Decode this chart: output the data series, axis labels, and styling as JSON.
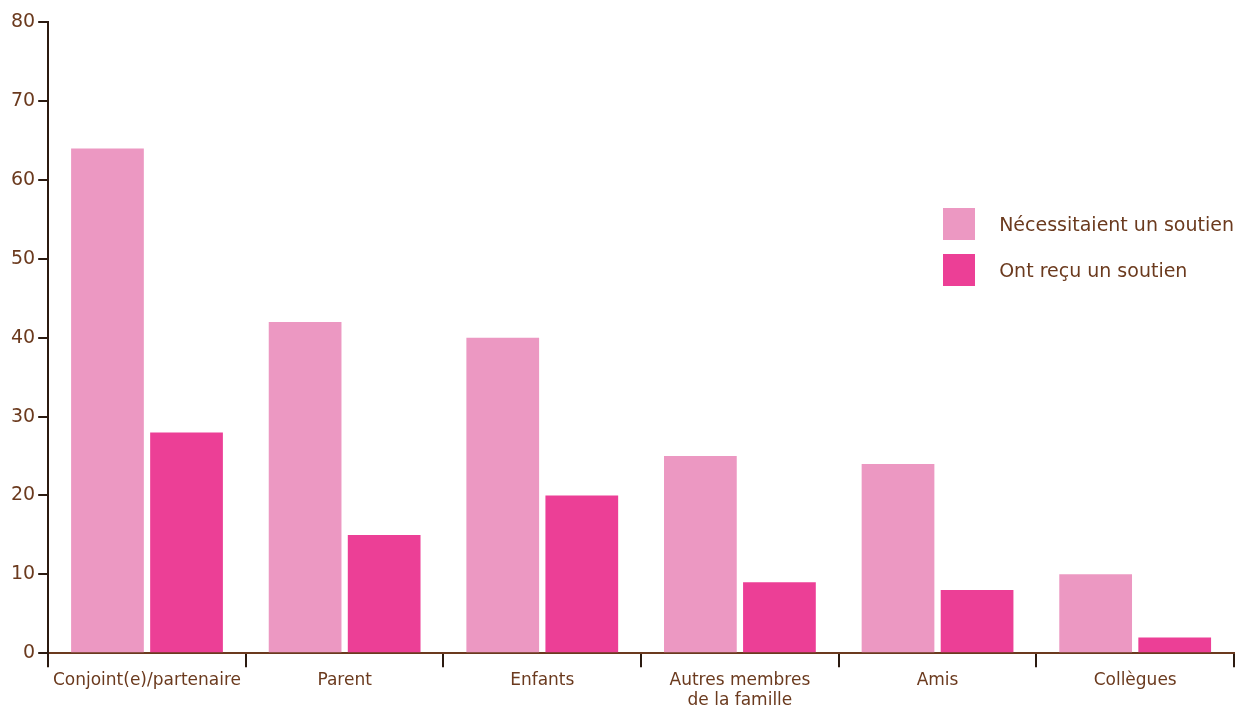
{
  "chart_data": {
    "type": "bar",
    "categories": [
      "Conjoint(e)/partenaire",
      "Parent",
      "Enfants",
      "Autres membres de la famille",
      "Amis",
      "Collègues"
    ],
    "series": [
      {
        "name": "Nécessitaient un soutien",
        "color": "#ec98c2",
        "values": [
          64,
          42,
          40,
          25,
          24,
          10
        ]
      },
      {
        "name": "Ont reçu un soutien",
        "color": "#ec3f96",
        "values": [
          28,
          15,
          20,
          9,
          8,
          2
        ]
      }
    ],
    "ylim": [
      0,
      80
    ],
    "yticks": [
      0,
      10,
      20,
      30,
      40,
      50,
      60,
      70,
      80
    ],
    "grid": false,
    "legend": "top right"
  }
}
